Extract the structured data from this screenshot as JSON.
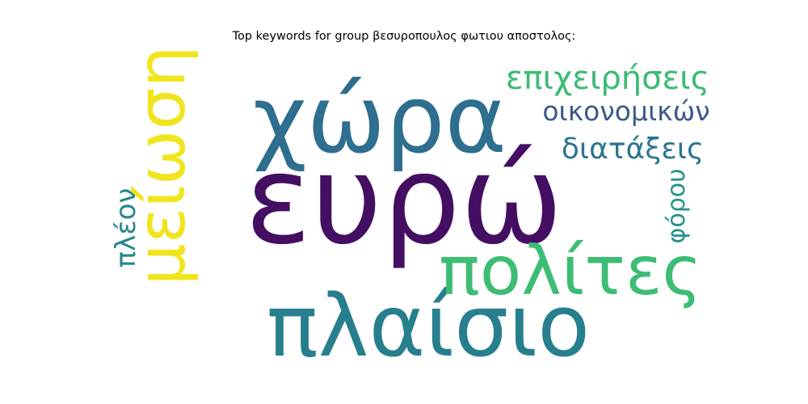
{
  "chart_data": {
    "type": "wordcloud",
    "title": "Top keywords for group βεσυροπουλος φωτιου αποστολος:",
    "words": [
      {
        "text": "ευρώ",
        "color": "#440f62"
      },
      {
        "text": "χώρα",
        "color": "#2e6e8e"
      },
      {
        "text": "πλαίσιο",
        "color": "#277f8e"
      },
      {
        "text": "μείωση",
        "color": "#f0e51c"
      },
      {
        "text": "πολίτες",
        "color": "#3dbc74"
      },
      {
        "text": "επιχειρήσεις",
        "color": "#3bbb75"
      },
      {
        "text": "οικονομικών",
        "color": "#3b5a8c"
      },
      {
        "text": "διατάξεις",
        "color": "#2b758e"
      },
      {
        "text": "πλέον",
        "color": "#25878e"
      },
      {
        "text": "φόρου",
        "color": "#22928c"
      }
    ]
  }
}
